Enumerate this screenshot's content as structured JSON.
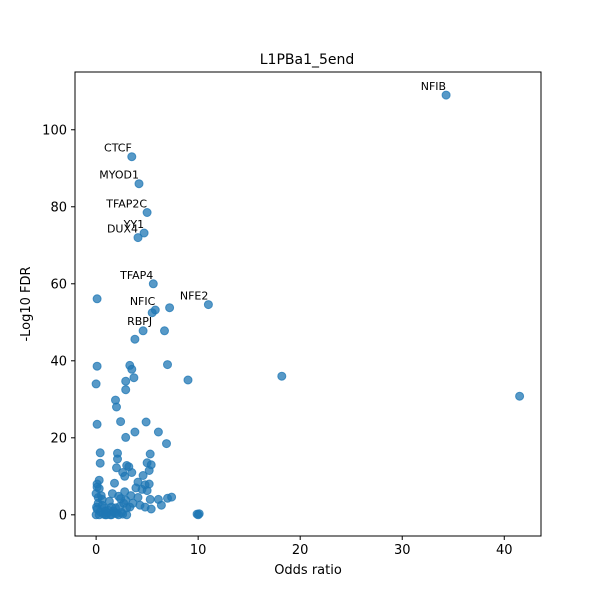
{
  "chart_data": {
    "type": "scatter",
    "title": "L1PBa1_5end",
    "xlabel": "Odds ratio",
    "ylabel": "-Log10 FDR",
    "xlim": [
      -2.07,
      43.6
    ],
    "ylim": [
      -5.5,
      115
    ],
    "xticks": [
      0,
      10,
      20,
      30,
      40
    ],
    "yticks": [
      0,
      20,
      40,
      60,
      80,
      100
    ],
    "grid": false,
    "marker_color": "#1f77b4",
    "marker_alpha": 0.75,
    "points": [
      [
        34.3,
        109.0
      ],
      [
        3.5,
        93.0
      ],
      [
        4.2,
        86.0
      ],
      [
        5.0,
        78.5
      ],
      [
        4.7,
        73.2
      ],
      [
        4.1,
        72.0
      ],
      [
        5.6,
        60.0
      ],
      [
        11.0,
        54.6
      ],
      [
        7.2,
        53.8
      ],
      [
        5.8,
        53.2
      ],
      [
        5.5,
        52.5
      ],
      [
        0.1,
        56.1
      ],
      [
        4.6,
        47.8
      ],
      [
        6.7,
        47.8
      ],
      [
        3.8,
        45.6
      ],
      [
        0.1,
        38.6
      ],
      [
        3.3,
        38.8
      ],
      [
        3.5,
        37.8
      ],
      [
        7.0,
        39.0
      ],
      [
        3.7,
        35.6
      ],
      [
        2.9,
        34.7
      ],
      [
        0.0,
        34.0
      ],
      [
        2.9,
        32.5
      ],
      [
        9.0,
        35.0
      ],
      [
        18.2,
        36.0
      ],
      [
        41.5,
        30.8
      ],
      [
        1.9,
        29.8
      ],
      [
        2.0,
        28.0
      ],
      [
        2.4,
        24.2
      ],
      [
        4.9,
        24.1
      ],
      [
        0.1,
        23.5
      ],
      [
        3.8,
        21.5
      ],
      [
        6.1,
        21.5
      ],
      [
        2.9,
        20.1
      ],
      [
        6.9,
        18.5
      ],
      [
        0.4,
        16.1
      ],
      [
        2.1,
        16.0
      ],
      [
        5.3,
        15.8
      ],
      [
        0.4,
        13.4
      ],
      [
        2.1,
        14.5
      ],
      [
        5.0,
        13.5
      ],
      [
        5.4,
        13.0
      ],
      [
        3.0,
        12.8
      ],
      [
        2.0,
        12.2
      ],
      [
        3.2,
        12.5
      ],
      [
        5.2,
        11.5
      ],
      [
        2.6,
        11.0
      ],
      [
        3.5,
        11.0
      ],
      [
        2.8,
        10.0
      ],
      [
        4.6,
        10.2
      ],
      [
        4.1,
        8.5
      ],
      [
        1.8,
        8.2
      ],
      [
        4.8,
        7.8
      ],
      [
        5.2,
        8.0
      ],
      [
        3.9,
        7.0
      ],
      [
        4.5,
        6.6
      ],
      [
        5.0,
        6.3
      ],
      [
        2.8,
        6.0
      ],
      [
        0.1,
        8.0
      ],
      [
        0.3,
        6.8
      ],
      [
        0.5,
        5.0
      ],
      [
        1.6,
        5.5
      ],
      [
        2.2,
        4.8
      ],
      [
        3.4,
        5.0
      ],
      [
        4.1,
        4.5
      ],
      [
        5.3,
        4.0
      ],
      [
        6.1,
        4.0
      ],
      [
        7.0,
        4.3
      ],
      [
        7.4,
        4.6
      ],
      [
        4.3,
        2.5
      ],
      [
        4.8,
        2.0
      ],
      [
        6.4,
        2.5
      ],
      [
        5.4,
        1.5
      ],
      [
        3.0,
        1.8
      ],
      [
        1.5,
        2.0
      ],
      [
        0.6,
        2.5
      ],
      [
        0.2,
        3.0
      ],
      [
        0.9,
        1.0
      ],
      [
        1.1,
        0.5
      ],
      [
        2.0,
        0.3
      ],
      [
        2.5,
        0.6
      ],
      [
        3.0,
        0.0
      ],
      [
        9.9,
        0.2
      ],
      [
        10.0,
        0.0
      ],
      [
        10.1,
        0.3
      ],
      [
        0.0,
        0.0
      ],
      [
        0.3,
        0.0
      ],
      [
        0.7,
        0.2
      ],
      [
        1.0,
        0.0
      ],
      [
        1.4,
        0.0
      ],
      [
        1.8,
        0.5
      ],
      [
        2.2,
        0.0
      ],
      [
        0.1,
        1.5
      ],
      [
        0.4,
        0.8
      ],
      [
        0.8,
        1.8
      ],
      [
        1.2,
        1.2
      ],
      [
        1.7,
        1.0
      ],
      [
        2.3,
        2.2
      ],
      [
        2.7,
        3.0
      ],
      [
        3.3,
        2.0
      ],
      [
        0.2,
        4.5
      ],
      [
        0.0,
        5.5
      ],
      [
        0.6,
        4.0
      ],
      [
        1.3,
        3.5
      ],
      [
        2.9,
        3.8
      ],
      [
        3.6,
        3.0
      ],
      [
        0.1,
        7.2
      ],
      [
        0.3,
        9.0
      ],
      [
        1.5,
        0.0
      ],
      [
        2.6,
        0.2
      ],
      [
        0.05,
        2.0
      ],
      [
        0.9,
        0.0
      ],
      [
        1.9,
        1.8
      ],
      [
        2.4,
        4.2
      ]
    ],
    "annotations": [
      {
        "text": "NFIB",
        "x": 34.3,
        "y": 109.0
      },
      {
        "text": "CTCF",
        "x": 3.5,
        "y": 93.0
      },
      {
        "text": "MYOD1",
        "x": 4.2,
        "y": 86.0
      },
      {
        "text": "TFAP2C",
        "x": 5.0,
        "y": 78.5
      },
      {
        "text": "YY1",
        "x": 4.7,
        "y": 73.2
      },
      {
        "text": "DUX4",
        "x": 4.1,
        "y": 72.0
      },
      {
        "text": "TFAP4",
        "x": 5.6,
        "y": 60.0
      },
      {
        "text": "NFIC",
        "x": 5.8,
        "y": 53.2
      },
      {
        "text": "NFE2",
        "x": 11.0,
        "y": 54.6
      },
      {
        "text": "RBPJ",
        "x": 5.5,
        "y": 48.0
      }
    ]
  }
}
